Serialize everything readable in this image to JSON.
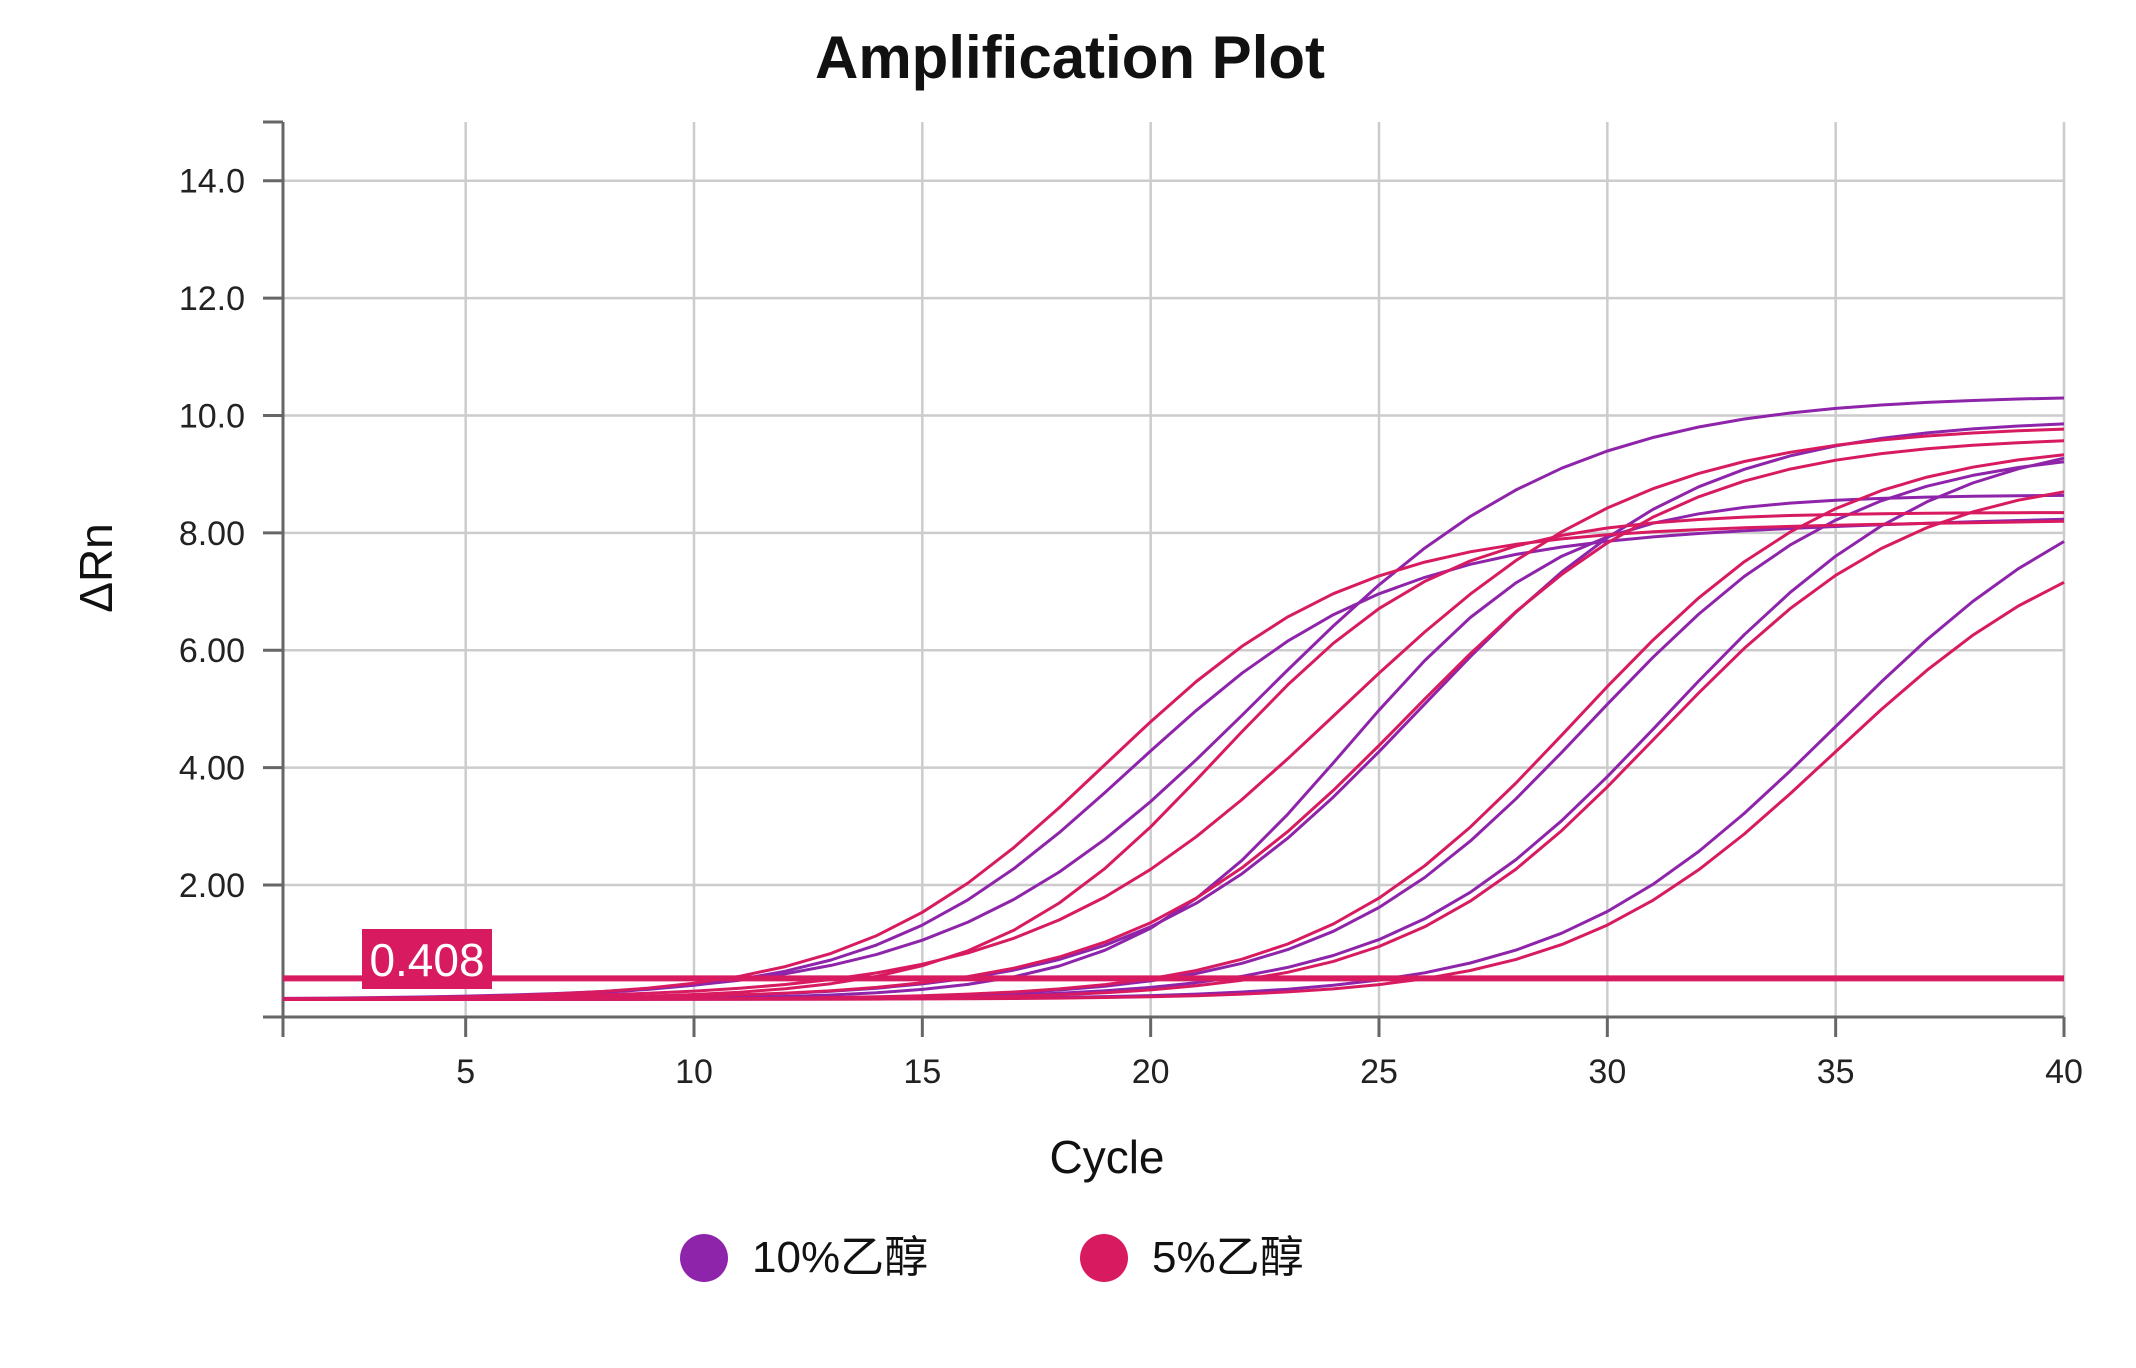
{
  "chart_data": {
    "type": "line",
    "title": "Amplification Plot",
    "xlabel": "Cycle",
    "ylabel": "ΔRn",
    "xlim": [
      1,
      40
    ],
    "ylim": [
      -0.25,
      15
    ],
    "x_ticks": [
      5,
      10,
      15,
      20,
      25,
      30,
      35,
      40
    ],
    "x_tick_labels": [
      "5",
      "10",
      "15",
      "20",
      "25",
      "30",
      "35",
      "40"
    ],
    "y_ticks": [
      2,
      4,
      6,
      8,
      10,
      12,
      14
    ],
    "y_tick_labels": [
      "2.00",
      "4.00",
      "6.00",
      "8.00",
      "10.0",
      "12.0",
      "14.0"
    ],
    "grid": true,
    "threshold": {
      "value": 0.408,
      "label": "0.408",
      "color": "#d81b60"
    },
    "legend": {
      "position": "bottom",
      "entries": [
        {
          "label": "10%乙醇",
          "color": "#8e24aa"
        },
        {
          "label": "5%乙醇",
          "color": "#d81b60"
        }
      ]
    },
    "series_curves": [
      {
        "group": "10%乙醇",
        "color": "#8e24aa",
        "plateau": 7.9,
        "midpoint": 19.6,
        "slope": 0.36,
        "drift": 0.02
      },
      {
        "group": "10%乙醇",
        "color": "#8e24aa",
        "plateau": 10.3,
        "midpoint": 22.4,
        "slope": 0.3,
        "drift": 0.0
      },
      {
        "group": "10%乙醇",
        "color": "#8e24aa",
        "plateau": 8.6,
        "midpoint": 24.3,
        "slope": 0.42,
        "drift": 0.0
      },
      {
        "group": "10%乙醇",
        "color": "#8e24aa",
        "plateau": 9.9,
        "midpoint": 25.9,
        "slope": 0.33,
        "drift": 0.0
      },
      {
        "group": "10%乙醇",
        "color": "#8e24aa",
        "plateau": 9.4,
        "midpoint": 29.6,
        "slope": 0.35,
        "drift": 0.0
      },
      {
        "group": "10%乙醇",
        "color": "#8e24aa",
        "plateau": 9.7,
        "midpoint": 31.3,
        "slope": 0.34,
        "drift": 0.0
      },
      {
        "group": "10%乙醇",
        "color": "#8e24aa",
        "plateau": 9.3,
        "midpoint": 35.0,
        "slope": 0.33,
        "drift": 0.0
      },
      {
        "group": "5%乙醇",
        "color": "#d81b60",
        "plateau": 8.0,
        "midpoint": 19.0,
        "slope": 0.37,
        "drift": 0.01
      },
      {
        "group": "5%乙醇",
        "color": "#d81b60",
        "plateau": 8.3,
        "midpoint": 21.5,
        "slope": 0.4,
        "drift": 0.0
      },
      {
        "group": "5%乙醇",
        "color": "#d81b60",
        "plateau": 9.8,
        "midpoint": 24.1,
        "slope": 0.3,
        "drift": 0.0
      },
      {
        "group": "5%乙醇",
        "color": "#d81b60",
        "plateau": 9.6,
        "midpoint": 25.6,
        "slope": 0.33,
        "drift": 0.0
      },
      {
        "group": "5%乙醇",
        "color": "#d81b60",
        "plateau": 9.5,
        "midpoint": 29.3,
        "slope": 0.35,
        "drift": 0.0
      },
      {
        "group": "5%乙醇",
        "color": "#d81b60",
        "plateau": 9.0,
        "midpoint": 31.1,
        "slope": 0.36,
        "drift": 0.0
      },
      {
        "group": "5%乙醇",
        "color": "#d81b60",
        "plateau": 8.3,
        "midpoint": 34.9,
        "slope": 0.35,
        "drift": 0.0
      }
    ]
  }
}
